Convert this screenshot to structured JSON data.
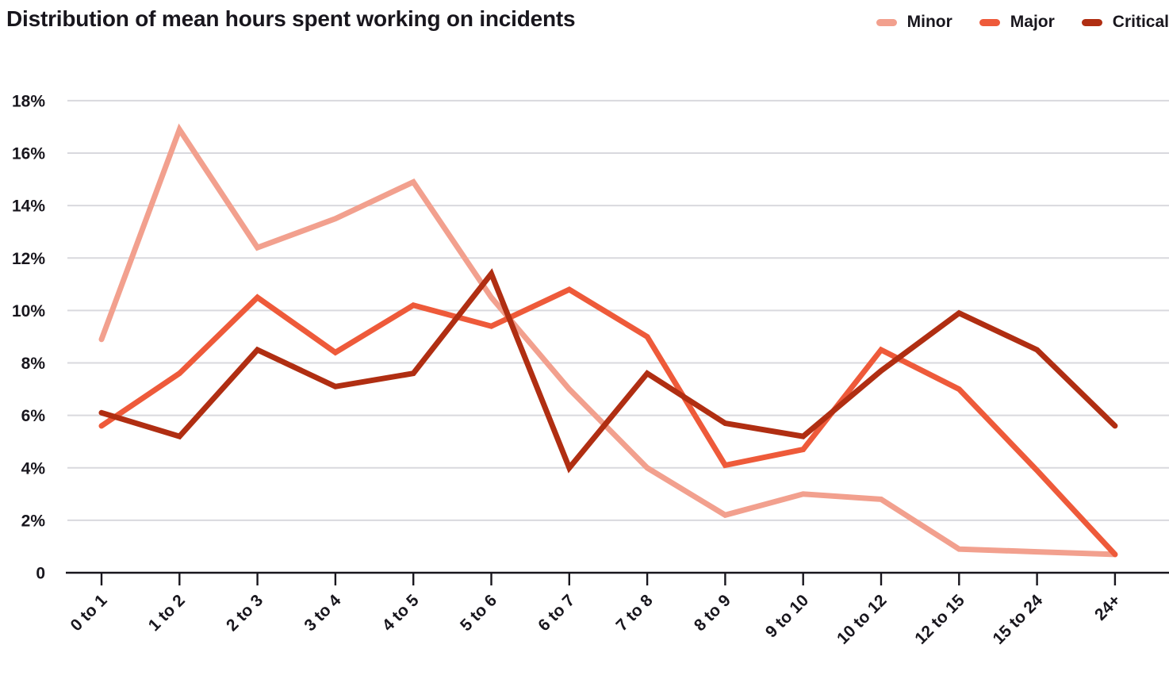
{
  "title": "Distribution of mean hours spent working on incidents",
  "legend": {
    "position": "top-right",
    "items": [
      {
        "label": "Minor",
        "color": "#f2a08e"
      },
      {
        "label": "Major",
        "color": "#ee5a3a"
      },
      {
        "label": "Critical",
        "color": "#b02e12"
      }
    ]
  },
  "chart_data": {
    "type": "line",
    "title": "Distribution of mean hours spent working on incidents",
    "xlabel": "",
    "ylabel": "",
    "categories": [
      "0 to 1",
      "1 to 2",
      "2 to 3",
      "3 to 4",
      "4 to 5",
      "5 to 6",
      "6 to 7",
      "7 to 8",
      "8 to 9",
      "9 to 10",
      "10 to 12",
      "12 to 15",
      "15 to 24",
      "24+"
    ],
    "y_tick_labels": [
      "18%",
      "16%",
      "14%",
      "12%",
      "10%",
      "8%",
      "6%",
      "4%",
      "2%",
      "0"
    ],
    "y_tick_values": [
      18,
      16,
      14,
      12,
      10,
      8,
      6,
      4,
      2,
      0
    ],
    "ylim": [
      0,
      18
    ],
    "grid": true,
    "legend_position": "top-right",
    "series": [
      {
        "name": "Minor",
        "color": "#f2a08e",
        "values": [
          8.9,
          16.9,
          12.4,
          13.5,
          14.9,
          10.5,
          7.0,
          4.0,
          2.2,
          3.0,
          2.8,
          0.9,
          0.8,
          0.7
        ]
      },
      {
        "name": "Major",
        "color": "#ee5a3a",
        "values": [
          5.6,
          7.6,
          10.5,
          8.4,
          10.2,
          9.4,
          10.8,
          9.0,
          4.1,
          4.7,
          8.5,
          7.0,
          3.9,
          0.7
        ]
      },
      {
        "name": "Critical",
        "color": "#b02e12",
        "values": [
          6.1,
          5.2,
          8.5,
          7.1,
          7.6,
          11.4,
          4.0,
          7.6,
          5.7,
          5.2,
          7.7,
          9.9,
          8.5,
          5.6
        ]
      }
    ]
  },
  "colors": {
    "text": "#18161d",
    "gridline": "#d9d9de",
    "axis": "#18161d",
    "background": "#ffffff"
  }
}
